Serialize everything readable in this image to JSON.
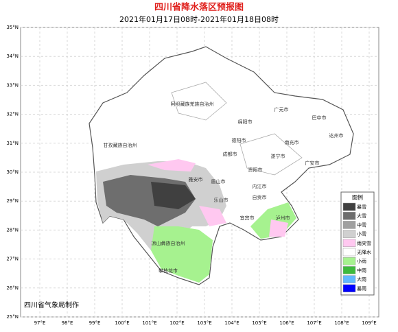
{
  "header": {
    "title": "四川省降水落区预报图",
    "subtitle": "2021年01月17日08时-2021年01月18日08时"
  },
  "lat_labels": [
    "35°N",
    "34°N",
    "33°N",
    "32°N",
    "31°N",
    "30°N",
    "29°N",
    "28°N",
    "27°N",
    "26°N",
    "25°N"
  ],
  "lon_labels": [
    "97°E",
    "98°E",
    "99°E",
    "100°E",
    "101°E",
    "102°E",
    "103°E",
    "104°E",
    "105°E",
    "106°E",
    "107°E",
    "108°E",
    "109°E"
  ],
  "places": [
    "阿坝藏族羌族自治州",
    "甘孜藏族自治州",
    "凉山彝族自治州",
    "攀枝花市",
    "雅安市",
    "乐山市",
    "眉山市",
    "成都市",
    "德阳市",
    "绵阳市",
    "广元市",
    "巴中市",
    "达州市",
    "南充市",
    "广安市",
    "遂宁市",
    "资阳市",
    "内江市",
    "自贡市",
    "宜宾市",
    "泸州市"
  ],
  "legend": {
    "title": "图例",
    "items": [
      {
        "label": "暴雪",
        "color": "#404040"
      },
      {
        "label": "大雪",
        "color": "#6e6e6e"
      },
      {
        "label": "中雪",
        "color": "#a0a0a0"
      },
      {
        "label": "小雪",
        "color": "#d0d0d0"
      },
      {
        "label": "雨夹雪",
        "color": "#ffc8f0"
      },
      {
        "label": "无降水",
        "color": "#ffffff"
      },
      {
        "label": "小雨",
        "color": "#a6f28f"
      },
      {
        "label": "中雨",
        "color": "#3dba3d"
      },
      {
        "label": "大雨",
        "color": "#61b8ff"
      },
      {
        "label": "暴雨",
        "color": "#0000fe"
      }
    ]
  },
  "footer": "四川省气象局制作"
}
